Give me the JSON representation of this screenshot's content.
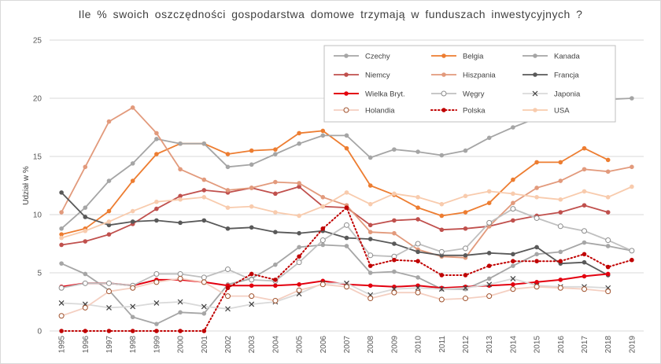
{
  "chart_data": {
    "type": "line",
    "title": "Ile % swoich oszczędności gospodarstwa domowe trzymają w funduszach inwestycyjnych ?",
    "ylabel": "Udział w %",
    "xlabel": "",
    "ylim": [
      0,
      25
    ],
    "yticks": [
      0,
      5,
      10,
      15,
      20,
      25
    ],
    "grid": "horizontal",
    "legend_position": "top-right",
    "x": [
      "1995",
      "1996",
      "1997",
      "1998",
      "1999",
      "2000",
      "2001",
      "2002",
      "2003",
      "2004",
      "2005",
      "2006",
      "2007",
      "2008",
      "2009",
      "2010",
      "2011",
      "2012",
      "2013",
      "2014",
      "2015",
      "2016",
      "2017",
      "2018",
      "2019"
    ],
    "series": [
      {
        "name": "Czechy",
        "color": "#a6a6a6",
        "style": "solid",
        "marker": "dot",
        "values": [
          5.8,
          4.9,
          3.5,
          1.2,
          0.6,
          1.6,
          1.5,
          4.0,
          4.5,
          5.7,
          7.2,
          7.4,
          7.3,
          5.0,
          5.1,
          4.6,
          3.6,
          3.6,
          4.5,
          5.6,
          6.6,
          6.8,
          7.6,
          7.3,
          6.9
        ]
      },
      {
        "name": "Belgia",
        "color": "#ed7d31",
        "style": "solid",
        "marker": "dot",
        "values": [
          8.3,
          8.8,
          10.3,
          12.9,
          15.2,
          16.1,
          16.1,
          15.2,
          15.5,
          15.6,
          17.0,
          17.2,
          15.7,
          12.5,
          11.7,
          10.6,
          9.9,
          10.2,
          11.0,
          13.0,
          14.5,
          14.5,
          15.7,
          14.7,
          null
        ]
      },
      {
        "name": "Kanada",
        "color": "#a5a5a5",
        "style": "solid",
        "marker": "dot",
        "values": [
          8.8,
          10.6,
          12.9,
          14.4,
          16.5,
          16.1,
          16.1,
          14.1,
          14.3,
          15.2,
          16.1,
          16.8,
          16.8,
          14.9,
          15.6,
          15.4,
          15.1,
          15.5,
          16.6,
          17.5,
          18.3,
          19.3,
          20.0,
          19.9,
          20.0
        ]
      },
      {
        "name": "Niemcy",
        "color": "#c0504d",
        "style": "solid",
        "marker": "dot",
        "values": [
          7.4,
          7.7,
          8.3,
          9.2,
          10.5,
          11.6,
          12.1,
          11.9,
          12.3,
          11.8,
          12.4,
          10.7,
          10.6,
          9.1,
          9.5,
          9.6,
          8.7,
          8.8,
          9.0,
          9.5,
          9.9,
          10.2,
          10.8,
          10.2,
          null
        ]
      },
      {
        "name": "Hiszpania",
        "color": "#e29a7c",
        "style": "solid",
        "marker": "dot",
        "values": [
          10.2,
          14.1,
          18.0,
          19.2,
          17.0,
          13.9,
          13.0,
          12.1,
          12.3,
          12.8,
          12.7,
          11.5,
          10.8,
          8.5,
          8.4,
          7.0,
          6.4,
          6.3,
          9.0,
          11.0,
          12.3,
          12.9,
          13.9,
          13.7,
          14.1
        ]
      },
      {
        "name": "Francja",
        "color": "#595959",
        "style": "solid",
        "marker": "dot",
        "values": [
          11.9,
          9.8,
          9.1,
          9.4,
          9.5,
          9.3,
          9.5,
          8.8,
          8.9,
          8.5,
          8.4,
          8.6,
          8.0,
          7.9,
          7.5,
          6.8,
          6.5,
          6.5,
          6.7,
          6.6,
          7.2,
          5.8,
          5.9,
          4.8,
          null
        ]
      },
      {
        "name": "Wielka Bryt.",
        "color": "#e3000f",
        "style": "solid",
        "marker": "dot",
        "width": 2,
        "values": [
          3.8,
          4.1,
          4.1,
          3.9,
          4.4,
          4.4,
          4.2,
          3.9,
          3.9,
          3.9,
          4.0,
          4.3,
          4.0,
          3.9,
          3.8,
          3.9,
          3.7,
          3.8,
          3.9,
          4.0,
          4.2,
          4.4,
          4.7,
          4.9,
          null
        ]
      },
      {
        "name": "Węgry",
        "color": "#bfbfbf",
        "style": "solid",
        "marker": "open-circle",
        "values": [
          3.7,
          4.1,
          4.1,
          3.9,
          4.9,
          4.9,
          4.6,
          5.3,
          4.4,
          4.3,
          5.9,
          7.8,
          9.1,
          6.5,
          6.4,
          7.5,
          6.8,
          7.1,
          9.3,
          10.5,
          9.7,
          9.0,
          8.6,
          7.8,
          6.9
        ]
      },
      {
        "name": "Japonia",
        "color": "#d9d9d9",
        "style": "solid",
        "marker": "x",
        "values": [
          2.4,
          2.3,
          2.0,
          2.1,
          2.4,
          2.5,
          2.1,
          1.9,
          2.3,
          2.5,
          3.2,
          4.1,
          4.1,
          3.1,
          3.6,
          3.7,
          3.6,
          3.7,
          4.0,
          4.5,
          3.9,
          3.8,
          3.8,
          3.7,
          null
        ]
      },
      {
        "name": "Holandia",
        "color": "#f4cfc1",
        "style": "solid",
        "marker": "open-circle-brown",
        "values": [
          1.3,
          2.0,
          3.4,
          3.7,
          4.2,
          4.5,
          4.2,
          3.0,
          3.0,
          2.6,
          3.5,
          4.0,
          3.8,
          2.8,
          3.3,
          3.3,
          2.7,
          2.8,
          3.0,
          3.6,
          3.8,
          3.7,
          3.6,
          3.4,
          null
        ]
      },
      {
        "name": "Polska",
        "color": "#c00000",
        "style": "dotted",
        "marker": "dot",
        "values": [
          0,
          0,
          0,
          0,
          0,
          0,
          0,
          3.7,
          4.9,
          4.4,
          6.4,
          8.8,
          10.6,
          5.6,
          6.1,
          6.0,
          4.8,
          4.8,
          5.6,
          6.0,
          6.0,
          6.0,
          6.6,
          5.5,
          6.1
        ]
      },
      {
        "name": "USA",
        "color": "#f8cbad",
        "style": "solid",
        "marker": "dot",
        "values": [
          8.0,
          8.6,
          9.4,
          10.3,
          11.1,
          11.3,
          11.5,
          10.6,
          10.7,
          10.2,
          9.9,
          10.7,
          11.9,
          10.9,
          11.8,
          11.5,
          10.9,
          11.6,
          12.0,
          11.8,
          11.5,
          11.3,
          12.0,
          11.5,
          12.4
        ]
      }
    ]
  }
}
